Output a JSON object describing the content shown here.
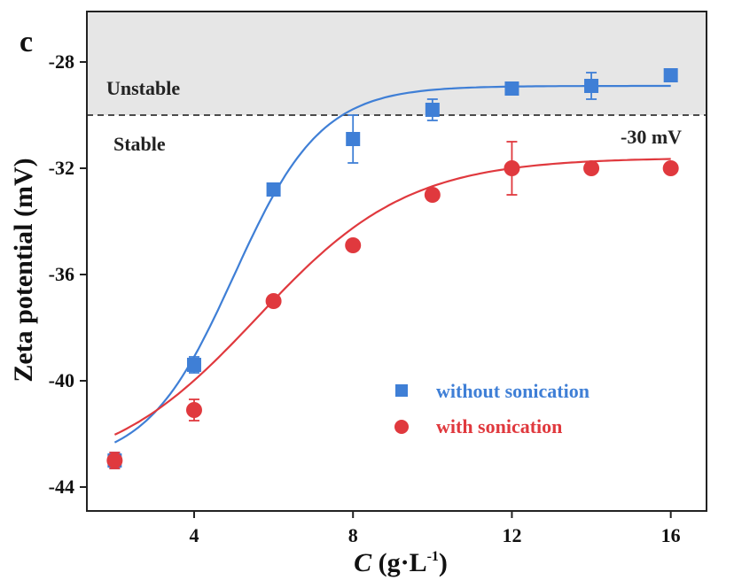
{
  "chart_data": {
    "type": "scatter",
    "panel_label": "c",
    "xlabel_italic": "C",
    "xlabel_units": " (g·L",
    "xlabel_sup": "-1",
    "xlabel_close": ")",
    "ylabel": "Zeta potential (mV)",
    "xlim": [
      1.3,
      16.9
    ],
    "ylim": [
      -44.9,
      -26.1
    ],
    "xticks": [
      4,
      8,
      12,
      16
    ],
    "yticks": [
      -28,
      -32,
      -36,
      -40,
      -44
    ],
    "threshold": {
      "value": -30,
      "label": "-30 mV"
    },
    "regions": {
      "unstable": "Unstable",
      "stable": "Stable"
    },
    "colors": {
      "without": "#3f7fd6",
      "with": "#e0393e",
      "shade": "#e6e6e6"
    },
    "series": [
      {
        "name": "without sonication",
        "marker": "square",
        "x": [
          2,
          4,
          6,
          8,
          10,
          12,
          14,
          16
        ],
        "y": [
          -43.0,
          -39.4,
          -32.8,
          -30.9,
          -29.8,
          -29.0,
          -28.9,
          -28.5
        ],
        "err": [
          0.3,
          0.3,
          0.2,
          0.9,
          0.4,
          0.2,
          0.5,
          0.2
        ],
        "fit": {
          "base": -43.2,
          "top": -28.9,
          "x0": 5.0,
          "w": 1.1
        }
      },
      {
        "name": "with sonication",
        "marker": "circle",
        "x": [
          2,
          4,
          6,
          8,
          10,
          12,
          14,
          16
        ],
        "y": [
          -43.0,
          -41.1,
          -37.0,
          -34.9,
          -33.0,
          -32.0,
          -32.0,
          -32.0
        ],
        "err": [
          0.3,
          0.4,
          0.2,
          0.2,
          0.2,
          1.0,
          0.15,
          0.15
        ],
        "fit": {
          "base": -43.6,
          "top": -31.6,
          "x0": 5.6,
          "w": 1.9
        }
      }
    ]
  }
}
